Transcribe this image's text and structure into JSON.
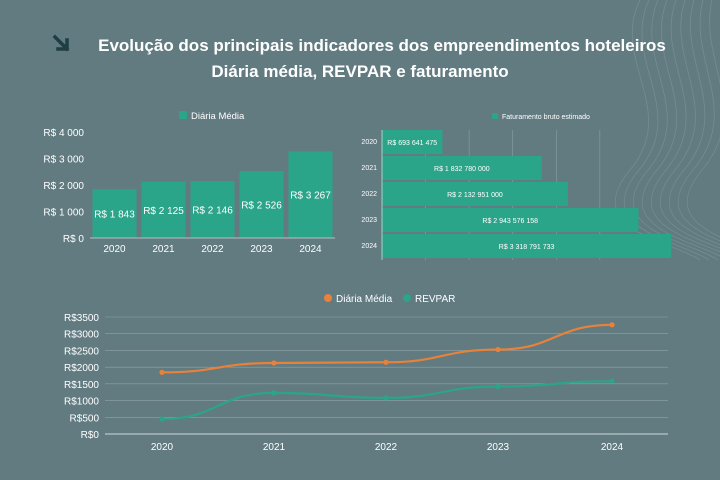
{
  "header": {
    "title_line1": "Evolução dos principais indicadores dos empreendimentos hoteleiros",
    "title_line2": "Diária média, REVPAR e faturamento",
    "icon": "arrow-down-right-icon"
  },
  "colors": {
    "background": "#617b81",
    "teal": "#2aa58a",
    "orange": "#e8813a",
    "axis": "#cfd8da",
    "grid": "#8fa3a7"
  },
  "chart_data": [
    {
      "type": "bar",
      "legend": "Diária Média",
      "categories": [
        "2020",
        "2021",
        "2022",
        "2023",
        "2024"
      ],
      "values": [
        1843,
        2125,
        2146,
        2526,
        3267
      ],
      "value_labels": [
        "R$ 1 843",
        "R$ 2 125",
        "R$ 2 146",
        "R$ 2 526",
        "R$ 3 267"
      ],
      "yticks": [
        0,
        1000,
        2000,
        3000,
        4000
      ],
      "ytick_labels": [
        "R$ 0",
        "R$ 1 000",
        "R$ 2 000",
        "R$ 3 000",
        "R$ 4 000"
      ],
      "ylim": [
        0,
        4000
      ]
    },
    {
      "type": "bar",
      "orientation": "horizontal",
      "legend": "Faturamento bruto estimado",
      "categories": [
        "2020",
        "2021",
        "2022",
        "2023",
        "2024"
      ],
      "values": [
        693641475,
        1832780000,
        2132951000,
        2943576158,
        3318791733
      ],
      "value_labels": [
        "R$ 693 641 475",
        "R$ 1 832 780 000",
        "R$ 2 132 951 000",
        "R$ 2 943 576 158",
        "R$ 3 318 791 733"
      ],
      "xlim": [
        0,
        3500000000
      ]
    },
    {
      "type": "line",
      "x": [
        "2020",
        "2021",
        "2022",
        "2023",
        "2024"
      ],
      "series": [
        {
          "name": "Diária Média",
          "values": [
            1843,
            2125,
            2146,
            2526,
            3267
          ]
        },
        {
          "name": "REVPAR",
          "values": [
            450,
            1230,
            1080,
            1420,
            1580
          ]
        }
      ],
      "yticks": [
        0,
        500,
        1000,
        1500,
        2000,
        2500,
        3000,
        3500
      ],
      "ytick_labels": [
        "R$0",
        "R$500",
        "R$1000",
        "R$1500",
        "R$2000",
        "R$2500",
        "R$3000",
        "R$3500"
      ],
      "ylim": [
        0,
        3500
      ]
    }
  ]
}
